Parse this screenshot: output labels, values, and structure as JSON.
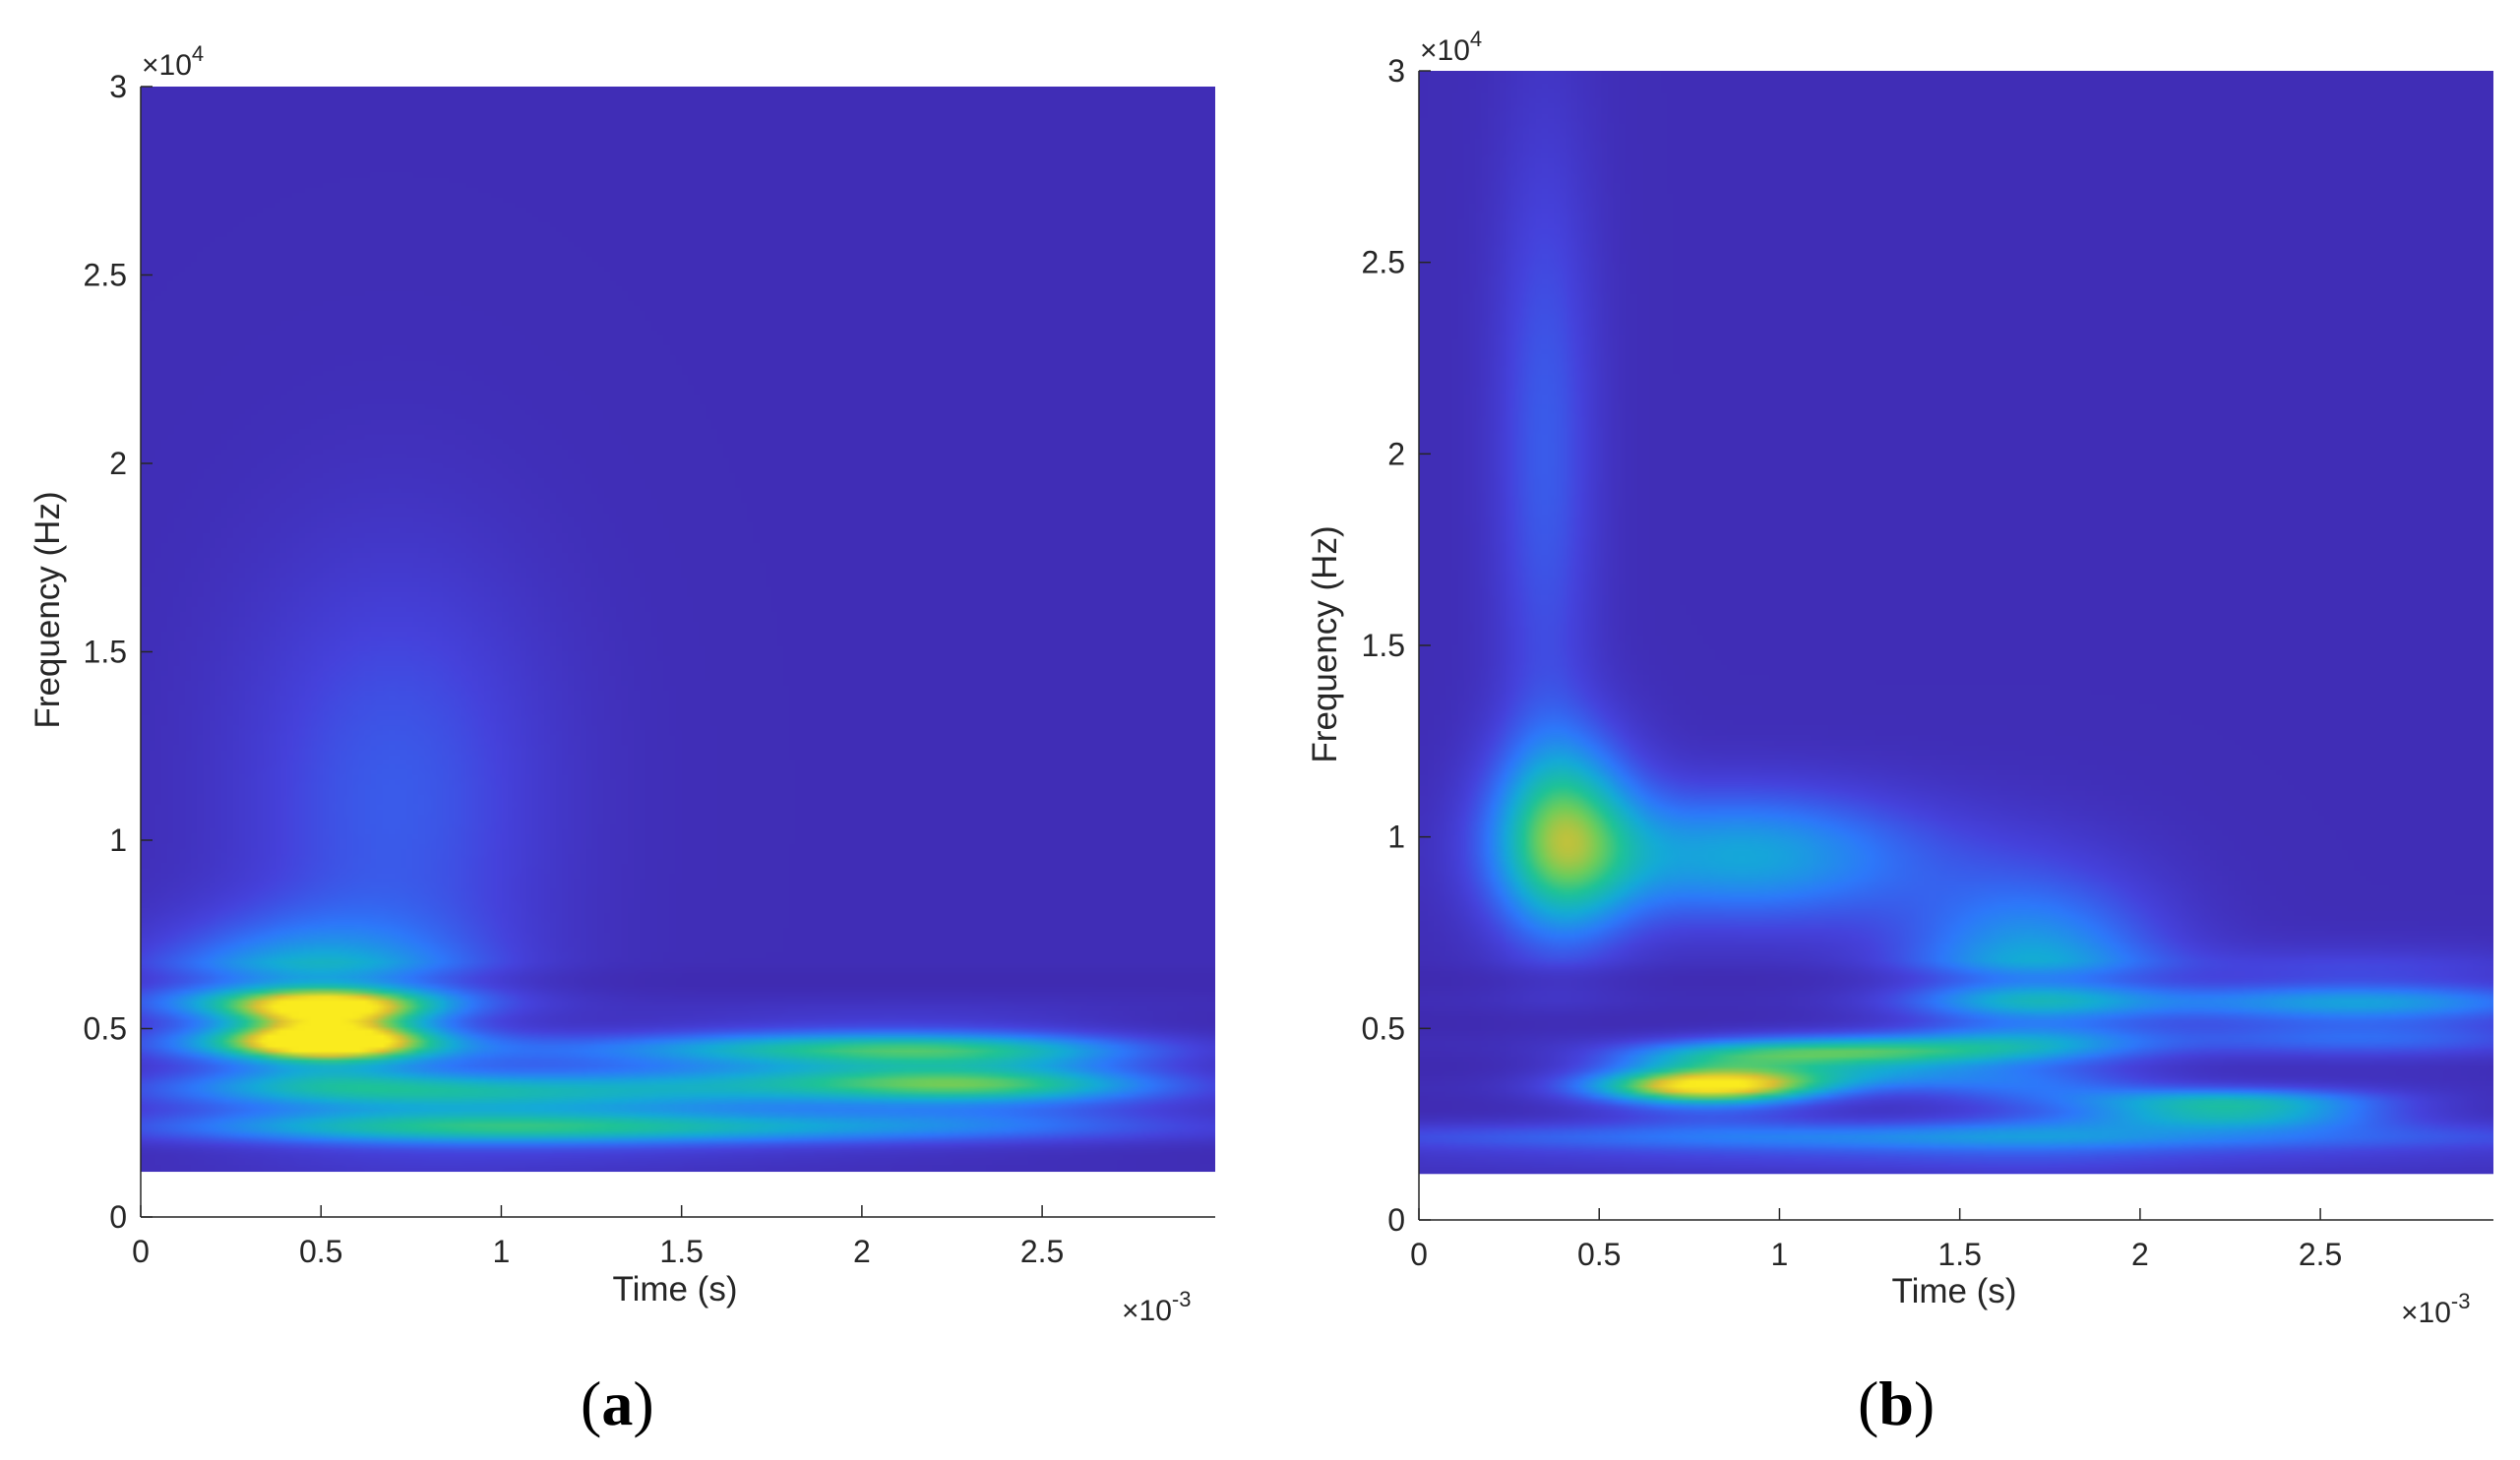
{
  "chart_data": [
    {
      "type": "heatmap",
      "panel_label": "a",
      "xlabel": "Time (s)",
      "ylabel": "Frequency (Hz)",
      "x_multiplier": "×10",
      "x_multiplier_exp": "-3",
      "y_multiplier": "×10",
      "y_multiplier_exp": "4",
      "xlim": [
        0,
        2.98
      ],
      "ylim": [
        0,
        3
      ],
      "x_ticks": [
        "0",
        "0.5",
        "1",
        "1.5",
        "2",
        "2.5"
      ],
      "x_tick_values": [
        0,
        0.5,
        1,
        1.5,
        2,
        2.5
      ],
      "y_ticks": [
        "0",
        "0.5",
        "1",
        "1.5",
        "2",
        "2.5",
        "3"
      ],
      "y_tick_values": [
        0,
        0.5,
        1,
        1.5,
        2,
        2.5,
        3
      ],
      "data_ylim": [
        0.12,
        3
      ],
      "colormap": "parula",
      "background_color": "#3e26a8",
      "hotspots": [
        {
          "t": 0.52,
          "f": 0.5,
          "intensity": 1.0,
          "sigma_t": 0.17,
          "sigma_f": 0.06
        },
        {
          "t": 0.45,
          "f": 0.55,
          "intensity": 0.55,
          "sigma_t": 0.3,
          "sigma_f": 0.14
        },
        {
          "t": 0.95,
          "f": 0.3,
          "intensity": 0.4,
          "sigma_t": 0.55,
          "sigma_f": 0.08
        },
        {
          "t": 1.85,
          "f": 0.42,
          "intensity": 0.48,
          "sigma_t": 0.45,
          "sigma_f": 0.06
        },
        {
          "t": 2.35,
          "f": 0.38,
          "intensity": 0.55,
          "sigma_t": 0.35,
          "sigma_f": 0.07
        },
        {
          "t": 1.5,
          "f": 0.25,
          "intensity": 0.35,
          "sigma_t": 0.9,
          "sigma_f": 0.05
        },
        {
          "t": 0.7,
          "f": 1.1,
          "intensity": 0.18,
          "sigma_t": 0.3,
          "sigma_f": 0.45
        }
      ]
    },
    {
      "type": "heatmap",
      "panel_label": "b",
      "xlabel": "Time (s)",
      "ylabel": "Frequency (Hz)",
      "x_multiplier": "×10",
      "x_multiplier_exp": "-3",
      "y_multiplier": "×10",
      "y_multiplier_exp": "4",
      "xlim": [
        0,
        2.98
      ],
      "ylim": [
        0,
        3
      ],
      "x_ticks": [
        "0",
        "0.5",
        "1",
        "1.5",
        "2",
        "2.5"
      ],
      "x_tick_values": [
        0,
        0.5,
        1,
        1.5,
        2,
        2.5
      ],
      "y_ticks": [
        "0",
        "0.5",
        "1",
        "1.5",
        "2",
        "2.5",
        "3"
      ],
      "y_tick_values": [
        0,
        0.5,
        1,
        1.5,
        2,
        2.5,
        3
      ],
      "data_ylim": [
        0.12,
        3
      ],
      "colormap": "parula",
      "background_color": "#3e26a8",
      "hotspots": [
        {
          "t": 0.8,
          "f": 0.36,
          "intensity": 1.0,
          "sigma_t": 0.22,
          "sigma_f": 0.05
        },
        {
          "t": 1.2,
          "f": 0.42,
          "intensity": 0.7,
          "sigma_t": 0.3,
          "sigma_f": 0.04
        },
        {
          "t": 2.25,
          "f": 0.29,
          "intensity": 0.8,
          "sigma_t": 0.3,
          "sigma_f": 0.03
        },
        {
          "t": 0.4,
          "f": 1.0,
          "intensity": 0.6,
          "sigma_t": 0.14,
          "sigma_f": 0.18
        },
        {
          "t": 0.9,
          "f": 0.95,
          "intensity": 0.4,
          "sigma_t": 0.35,
          "sigma_f": 0.12
        },
        {
          "t": 1.7,
          "f": 0.6,
          "intensity": 0.45,
          "sigma_t": 0.25,
          "sigma_f": 0.2
        },
        {
          "t": 2.6,
          "f": 0.55,
          "intensity": 0.4,
          "sigma_t": 0.4,
          "sigma_f": 0.08
        },
        {
          "t": 1.5,
          "f": 0.2,
          "intensity": 0.35,
          "sigma_t": 1.2,
          "sigma_f": 0.04
        },
        {
          "t": 0.35,
          "f": 2.0,
          "intensity": 0.18,
          "sigma_t": 0.1,
          "sigma_f": 0.6
        }
      ]
    }
  ]
}
